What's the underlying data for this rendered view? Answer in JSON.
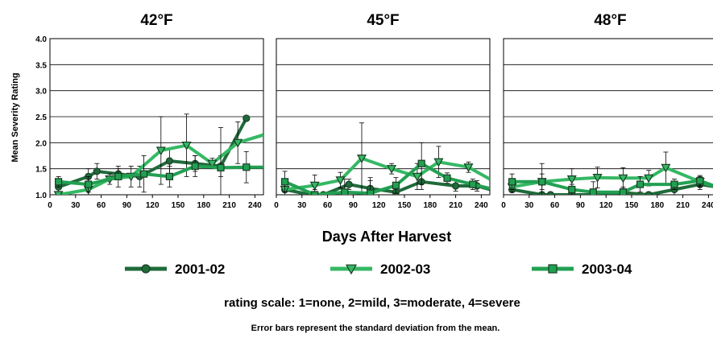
{
  "chart_data": {
    "type": "line",
    "ylabel": "Mean Severity Rating",
    "xlabel": "Days After Harvest",
    "ylim": [
      1.0,
      4.0
    ],
    "yticks": [
      "1.0",
      "1.5",
      "2.0",
      "2.5",
      "3.0",
      "3.5",
      "4.0"
    ],
    "xlim": [
      0,
      250
    ],
    "xticks": [
      "0",
      "30",
      "60",
      "90",
      "120",
      "150",
      "180",
      "210",
      "240"
    ],
    "grid": "horizontal",
    "legend_position": "bottom",
    "scale_note": "rating scale: 1=none, 2=mild, 3=moderate, 4=severe",
    "footnote": "Error bars represent the standard deviation from the mean.",
    "series_styles": [
      {
        "name": "2001-02",
        "color": "#1f6b3a",
        "marker": "circle"
      },
      {
        "name": "2002-03",
        "color": "#35b864",
        "marker": "triangle-down"
      },
      {
        "name": "2003-04",
        "color": "#22a052",
        "marker": "square"
      }
    ],
    "panels": [
      {
        "title": "42°F",
        "series": [
          {
            "name": "2001-02",
            "points": [
              [
                10,
                1.15,
                0.12
              ],
              [
                45,
                1.35,
                0.15
              ],
              [
                55,
                1.45,
                0.15
              ],
              [
                80,
                1.4,
                0.1
              ],
              [
                105,
                1.35,
                0.2
              ],
              [
                140,
                1.65,
                0.25
              ],
              [
                170,
                1.6,
                0.15
              ],
              [
                200,
                1.55,
                0.2
              ],
              [
                230,
                2.47,
                0.0
              ]
            ]
          },
          {
            "name": "2002-03",
            "points": [
              [
                10,
                1.0,
                0.0
              ],
              [
                45,
                1.1,
                0.15
              ],
              [
                70,
                1.3,
                0.1
              ],
              [
                95,
                1.35,
                0.2
              ],
              [
                130,
                1.85,
                0.65
              ],
              [
                160,
                1.95,
                0.6
              ],
              [
                190,
                1.6,
                0.1
              ],
              [
                220,
                2.0,
                0.4
              ],
              [
                250,
                2.15,
                0.0
              ]
            ]
          },
          {
            "name": "2003-04",
            "points": [
              [
                10,
                1.25,
                0.1
              ],
              [
                45,
                1.2,
                0.15
              ],
              [
                80,
                1.35,
                0.2
              ],
              [
                110,
                1.4,
                0.35
              ],
              [
                140,
                1.35,
                0.2
              ],
              [
                170,
                1.55,
                0.2
              ],
              [
                200,
                1.52,
                0.77
              ],
              [
                230,
                1.53,
                0.3
              ],
              [
                250,
                1.53,
                0.0
              ]
            ]
          }
        ]
      },
      {
        "title": "45°F",
        "series": [
          {
            "name": "2001-02",
            "points": [
              [
                10,
                1.1,
                0.1
              ],
              [
                40,
                1.0,
                0.05
              ],
              [
                55,
                1.0,
                0.05
              ],
              [
                85,
                1.2,
                0.1
              ],
              [
                110,
                1.12,
                0.15
              ],
              [
                140,
                1.05,
                0.1
              ],
              [
                170,
                1.25,
                0.15
              ],
              [
                210,
                1.17,
                0.1
              ],
              [
                235,
                1.17,
                0.1
              ],
              [
                250,
                1.1,
                0.0
              ]
            ]
          },
          {
            "name": "2002-03",
            "points": [
              [
                10,
                1.1,
                0.05
              ],
              [
                45,
                1.18,
                0.2
              ],
              [
                75,
                1.28,
                0.15
              ],
              [
                100,
                1.7,
                0.68
              ],
              [
                135,
                1.5,
                0.1
              ],
              [
                165,
                1.35,
                0.25
              ],
              [
                190,
                1.63,
                0.3
              ],
              [
                225,
                1.53,
                0.1
              ],
              [
                250,
                1.3,
                0.0
              ]
            ]
          },
          {
            "name": "2003-04",
            "points": [
              [
                10,
                1.25,
                0.2
              ],
              [
                45,
                1.0,
                0.1
              ],
              [
                80,
                1.05,
                0.25
              ],
              [
                110,
                1.03,
                0.3
              ],
              [
                140,
                1.18,
                0.15
              ],
              [
                170,
                1.6,
                0.4
              ],
              [
                200,
                1.32,
                0.1
              ],
              [
                230,
                1.2,
                0.1
              ],
              [
                250,
                1.12,
                0.0
              ]
            ]
          }
        ]
      },
      {
        "title": "48°F",
        "series": [
          {
            "name": "2001-02",
            "points": [
              [
                10,
                1.1,
                0.05
              ],
              [
                45,
                1.0,
                0.05
              ],
              [
                55,
                1.0,
                0.05
              ],
              [
                80,
                1.0,
                0.05
              ],
              [
                105,
                1.0,
                0.05
              ],
              [
                140,
                1.04,
                0.05
              ],
              [
                170,
                1.0,
                0.05
              ],
              [
                200,
                1.1,
                0.1
              ],
              [
                230,
                1.2,
                0.1
              ],
              [
                250,
                1.15,
                0.0
              ]
            ]
          },
          {
            "name": "2002-03",
            "points": [
              [
                10,
                1.15,
                0.1
              ],
              [
                45,
                1.25,
                0.15
              ],
              [
                80,
                1.3,
                0.2
              ],
              [
                110,
                1.33,
                0.2
              ],
              [
                140,
                1.32,
                0.2
              ],
              [
                170,
                1.32,
                0.15
              ],
              [
                190,
                1.52,
                0.3
              ],
              [
                230,
                1.25,
                0.1
              ],
              [
                250,
                1.15,
                0.0
              ]
            ]
          },
          {
            "name": "2003-04",
            "points": [
              [
                10,
                1.25,
                0.15
              ],
              [
                45,
                1.25,
                0.35
              ],
              [
                80,
                1.1,
                0.1
              ],
              [
                105,
                1.05,
                0.2
              ],
              [
                140,
                1.05,
                0.1
              ],
              [
                160,
                1.2,
                0.15
              ],
              [
                200,
                1.2,
                0.1
              ],
              [
                230,
                1.27,
                0.1
              ],
              [
                250,
                1.15,
                0.0
              ]
            ]
          }
        ]
      }
    ]
  }
}
